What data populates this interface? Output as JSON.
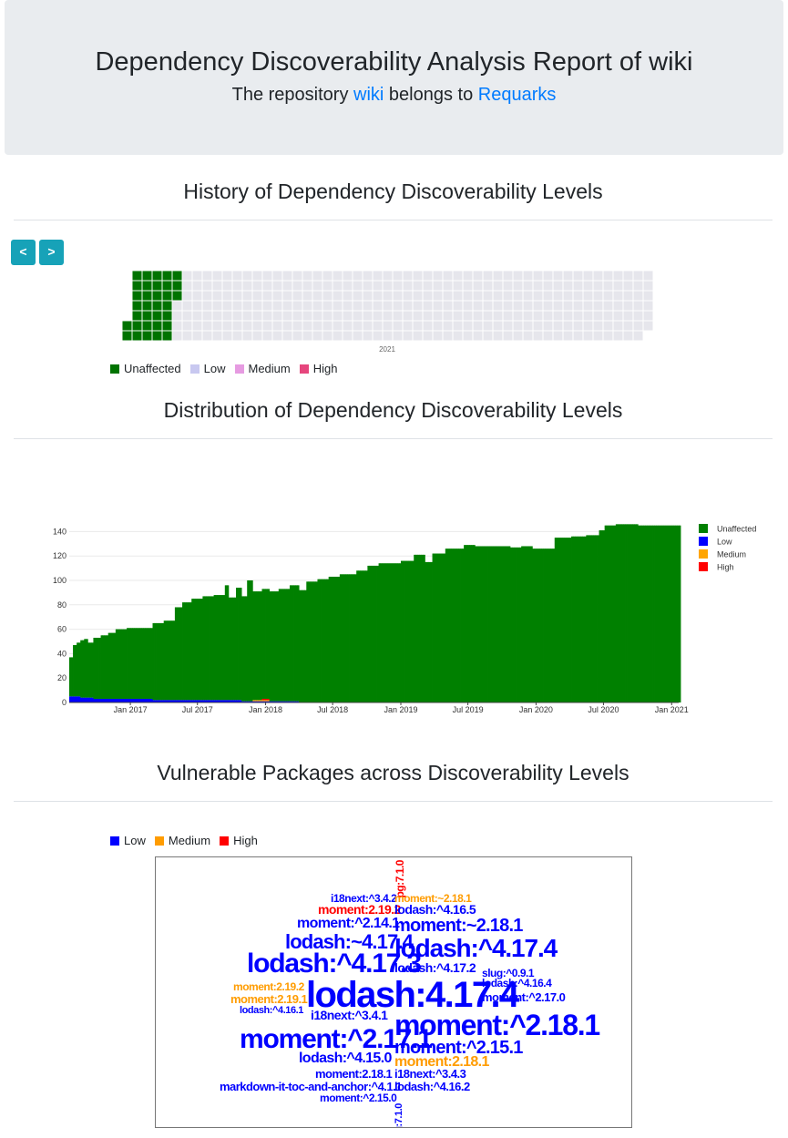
{
  "header": {
    "title": "Dependency Discoverability Analysis Report of wiki",
    "subtitle_prefix": "The repository",
    "repo_link": "wiki",
    "subtitle_middle": "belongs to",
    "owner_link": "Requarks"
  },
  "history": {
    "title": "History of Dependency Discoverability Levels",
    "prev_label": "<",
    "next_label": ">",
    "year_label": "2021",
    "legend": [
      {
        "label": "Unaffected",
        "color": "#007300"
      },
      {
        "label": "Low",
        "color": "#c8c8f0"
      },
      {
        "label": "Medium",
        "color": "#e69be1"
      },
      {
        "label": "High",
        "color": "#e6467d"
      }
    ]
  },
  "distribution": {
    "title": "Distribution of Dependency Discoverability Levels"
  },
  "vulnerable": {
    "title": "Vulnerable Packages across Discoverability Levels",
    "legend": [
      {
        "label": "Low",
        "color": "#0000ff"
      },
      {
        "label": "Medium",
        "color": "#ff9c00"
      },
      {
        "label": "High",
        "color": "#ff0000"
      }
    ],
    "words": [
      {
        "text": "pg:7.1.0",
        "level": "High",
        "size": 12
      },
      {
        "text": "i18next:^3.4.2",
        "level": "Low",
        "size": 12
      },
      {
        "text": "moment:~2.18.1",
        "level": "Medium",
        "size": 12
      },
      {
        "text": "moment:2.19.2",
        "level": "High",
        "size": 14
      },
      {
        "text": "lodash:^4.16.5",
        "level": "Low",
        "size": 14
      },
      {
        "text": "moment:^2.14.1",
        "level": "Low",
        "size": 16
      },
      {
        "text": "moment:~2.18.1",
        "level": "Low",
        "size": 20
      },
      {
        "text": "lodash:~4.17.4",
        "level": "Low",
        "size": 22
      },
      {
        "text": "lodash:^4.17.4",
        "level": "Low",
        "size": 28
      },
      {
        "text": "lodash:^4.17.3",
        "level": "Low",
        "size": 30
      },
      {
        "text": "lodash:^4.17.2",
        "level": "Low",
        "size": 14
      },
      {
        "text": "slug:^0.9.1",
        "level": "Low",
        "size": 12
      },
      {
        "text": "lodash:^4.16.4",
        "level": "Low",
        "size": 12
      },
      {
        "text": "moment:2.19.2",
        "level": "Medium",
        "size": 12
      },
      {
        "text": "lodash:4.17.4",
        "level": "Low",
        "size": 40
      },
      {
        "text": "moment:^2.17.0",
        "level": "Low",
        "size": 13
      },
      {
        "text": "moment:2.19.1",
        "level": "Medium",
        "size": 13
      },
      {
        "text": "lodash:^4.16.1",
        "level": "Low",
        "size": 11
      },
      {
        "text": "i18next:^3.4.1",
        "level": "Low",
        "size": 14
      },
      {
        "text": "moment:^2.18.1",
        "level": "Low",
        "size": 32
      },
      {
        "text": "moment:^2.17.1",
        "level": "Low",
        "size": 30
      },
      {
        "text": "moment:^2.15.1",
        "level": "Low",
        "size": 20
      },
      {
        "text": "lodash:^4.15.0",
        "level": "Low",
        "size": 16
      },
      {
        "text": "moment:2.18.1",
        "level": "Medium",
        "size": 16
      },
      {
        "text": "moment:2.18.1",
        "level": "Low",
        "size": 13
      },
      {
        "text": "i18next:^3.4.3",
        "level": "Low",
        "size": 13
      },
      {
        "text": "markdown-it-toc-and-anchor:^4.1.1",
        "level": "Low",
        "size": 13
      },
      {
        "text": "lodash:^4.16.2",
        "level": "Low",
        "size": 13
      },
      {
        "text": "moment:^2.15.0",
        "level": "Low",
        "size": 12
      },
      {
        "text": "pg:7.1.0",
        "level": "Low",
        "size": 11
      }
    ]
  },
  "chart_data": [
    {
      "type": "heatmap",
      "title": "History of Dependency Discoverability Levels",
      "xlabel": "2021",
      "weeks": 53,
      "days_per_week": 7,
      "levels": [
        "Unaffected",
        "Low",
        "Medium",
        "High"
      ],
      "filled_weeks": {
        "first_week_start_day": 5,
        "full_weeks": 4,
        "last_week_days": 3,
        "level": "Unaffected"
      },
      "colors": {
        "Unaffected": "#007300",
        "Low": "#c8c8f0",
        "Medium": "#e69be1",
        "High": "#e6467d",
        "empty": "#e6e6ec"
      }
    },
    {
      "type": "bar",
      "stacked": true,
      "title": "Distribution of Dependency Discoverability Levels",
      "x_start": "2016-07-20",
      "x_end": "2021-01-20",
      "x_ticks": [
        "Jan 2017",
        "Jul 2017",
        "Jan 2018",
        "Jul 2018",
        "Jan 2019",
        "Jul 2019",
        "Jan 2020",
        "Jul 2020",
        "Jan 2021"
      ],
      "y_ticks": [
        0,
        20,
        40,
        60,
        80,
        100,
        120,
        140
      ],
      "ylim": [
        0,
        150
      ],
      "grid": true,
      "legend_position": "right",
      "series": [
        {
          "name": "Unaffected",
          "color": "#008000",
          "points": [
            [
              "2016-07-20",
              32
            ],
            [
              "2016-07-28",
              42
            ],
            [
              "2016-08-05",
              44
            ],
            [
              "2016-08-15",
              47
            ],
            [
              "2016-08-25",
              48
            ],
            [
              "2016-09-05",
              45
            ],
            [
              "2016-09-20",
              50
            ],
            [
              "2016-10-10",
              52
            ],
            [
              "2016-11-01",
              54
            ],
            [
              "2016-11-20",
              57
            ],
            [
              "2016-12-20",
              58
            ],
            [
              "2017-01-20",
              58
            ],
            [
              "2017-02-20",
              58
            ],
            [
              "2017-03-01",
              63
            ],
            [
              "2017-04-01",
              65
            ],
            [
              "2017-05-01",
              76
            ],
            [
              "2017-05-20",
              80
            ],
            [
              "2017-06-15",
              83
            ],
            [
              "2017-07-15",
              85
            ],
            [
              "2017-08-10",
              86
            ],
            [
              "2017-09-10",
              94
            ],
            [
              "2017-09-20",
              84
            ],
            [
              "2017-10-10",
              92
            ],
            [
              "2017-10-25",
              86
            ],
            [
              "2017-11-10",
              99
            ],
            [
              "2017-11-25",
              89
            ],
            [
              "2017-12-20",
              90
            ],
            [
              "2018-02-01",
              92
            ],
            [
              "2018-03-05",
              95
            ],
            [
              "2018-04-01",
              92
            ],
            [
              "2018-04-20",
              99
            ],
            [
              "2018-05-20",
              101
            ],
            [
              "2018-06-20",
              103
            ],
            [
              "2018-07-20",
              105
            ],
            [
              "2018-09-01",
              108
            ],
            [
              "2018-10-01",
              112
            ],
            [
              "2018-11-01",
              114
            ],
            [
              "2019-01-01",
              116
            ],
            [
              "2019-02-01",
              121
            ],
            [
              "2019-03-05",
              115
            ],
            [
              "2019-03-25",
              122
            ],
            [
              "2019-05-01",
              126
            ],
            [
              "2019-06-20",
              129
            ],
            [
              "2019-07-20",
              128
            ],
            [
              "2019-09-01",
              128
            ],
            [
              "2019-10-01",
              128
            ],
            [
              "2019-10-20",
              127
            ],
            [
              "2019-11-20",
              128
            ],
            [
              "2019-12-20",
              126
            ],
            [
              "2020-01-20",
              126
            ],
            [
              "2020-02-20",
              135
            ],
            [
              "2020-04-01",
              136
            ],
            [
              "2020-05-15",
              137
            ],
            [
              "2020-06-15",
              141
            ],
            [
              "2020-07-01",
              145
            ],
            [
              "2020-08-01",
              146
            ],
            [
              "2020-10-01",
              145
            ],
            [
              "2021-01-20",
              145
            ]
          ]
        },
        {
          "name": "Low",
          "color": "#0000ff",
          "points": [
            [
              "2016-07-20",
              5
            ],
            [
              "2016-08-15",
              4
            ],
            [
              "2016-09-20",
              3
            ],
            [
              "2017-03-01",
              2
            ],
            [
              "2017-09-10",
              2
            ],
            [
              "2017-10-25",
              1
            ],
            [
              "2017-11-25",
              1
            ],
            [
              "2018-02-01",
              1
            ],
            [
              "2018-03-05",
              1
            ],
            [
              "2018-04-01",
              0
            ]
          ]
        },
        {
          "name": "Medium",
          "color": "#ffa500",
          "points": [
            [
              "2017-11-25",
              1
            ],
            [
              "2017-12-20",
              1
            ],
            [
              "2018-01-10",
              0
            ]
          ]
        },
        {
          "name": "High",
          "color": "#ff0000",
          "points": [
            [
              "2017-12-20",
              1
            ],
            [
              "2018-01-10",
              0
            ]
          ]
        }
      ]
    }
  ]
}
